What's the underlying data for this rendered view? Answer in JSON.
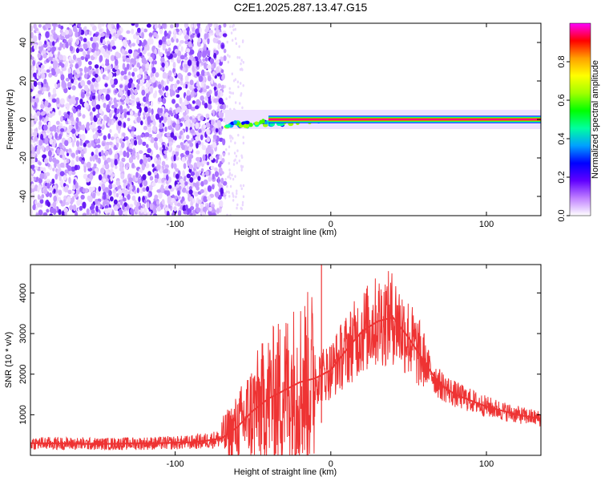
{
  "title": "C2E1.2025.287.13.47.G15",
  "chart_data": [
    {
      "type": "heatmap",
      "xlabel": "Height of straight line (km)",
      "ylabel": "Frequency (Hz)",
      "xlim": [
        -193,
        135
      ],
      "ylim": [
        -50,
        50
      ],
      "xticks": [
        -100,
        0,
        100
      ],
      "yticks": [
        -40,
        -20,
        0,
        20,
        40
      ],
      "colorbar": {
        "label": "Normalized spectral amplitude",
        "range": [
          0,
          1
        ],
        "ticks": [
          0.0,
          0.2,
          0.4,
          0.6,
          0.8
        ],
        "colormap": [
          "#ffffff",
          "#c080ff",
          "#6000ff",
          "#0000ff",
          "#00a0ff",
          "#00ffa0",
          "#00ff00",
          "#a0ff00",
          "#ffff00",
          "#ffa000",
          "#ff0000",
          "#ff00ff"
        ]
      },
      "features": {
        "noise_region_x": [
          -193,
          -68
        ],
        "signal_line_start_x": -68,
        "signal_line_frequency": 0,
        "signal_line_early_offset": -3
      }
    },
    {
      "type": "line",
      "xlabel": "Height of straight line (km)",
      "ylabel": "SNR (10 * v/v)",
      "xlim": [
        -193,
        135
      ],
      "ylim": [
        0,
        4700
      ],
      "xticks": [
        -100,
        0,
        100
      ],
      "yticks": [
        1000,
        2000,
        3000,
        4000
      ],
      "color": "#ee3333",
      "x": [
        -193,
        -170,
        -150,
        -130,
        -110,
        -90,
        -80,
        -70,
        -60,
        -50,
        -40,
        -30,
        -20,
        -10,
        0,
        10,
        20,
        30,
        40,
        50,
        60,
        70,
        80,
        90,
        100,
        110,
        120,
        135
      ],
      "y": [
        300,
        290,
        280,
        290,
        300,
        320,
        360,
        420,
        700,
        1100,
        1400,
        1600,
        1800,
        1900,
        2100,
        2600,
        3050,
        3300,
        3400,
        2900,
        2300,
        1750,
        1500,
        1350,
        1200,
        1100,
        1000,
        900
      ],
      "spike": {
        "x": -6,
        "y": 4700
      }
    }
  ]
}
